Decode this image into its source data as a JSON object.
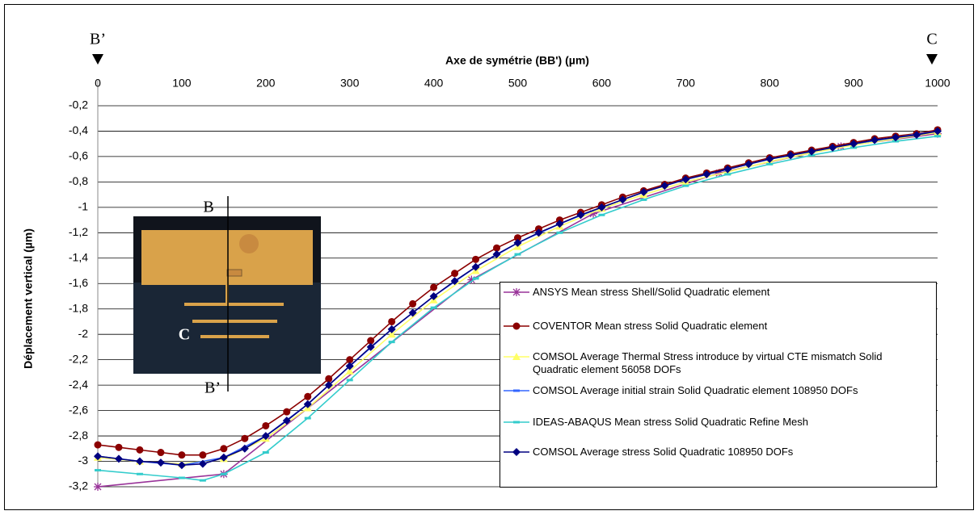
{
  "chart_data": {
    "type": "line",
    "xlabel": "Axe de symétrie (BB')  (µm)",
    "ylabel": "Déplacement vertical  (µm)",
    "xlim": [
      0,
      1000
    ],
    "xticks": [
      0,
      100,
      200,
      300,
      400,
      500,
      600,
      700,
      800,
      900,
      1000
    ],
    "ylim": [
      -3.2,
      0
    ],
    "yticks": [
      {
        "value": -0.2,
        "label": "-0,2"
      },
      {
        "value": -0.4,
        "label": "-0,4"
      },
      {
        "value": -0.6,
        "label": "-0,6"
      },
      {
        "value": -0.8,
        "label": "-0,8"
      },
      {
        "value": -1,
        "label": "-1"
      },
      {
        "value": -1.2,
        "label": "-1,2"
      },
      {
        "value": -1.4,
        "label": "-1,4"
      },
      {
        "value": -1.6,
        "label": "-1,6"
      },
      {
        "value": -1.8,
        "label": "-1,8"
      },
      {
        "value": -2,
        "label": "-2"
      },
      {
        "value": -2.2,
        "label": "-2,2"
      },
      {
        "value": -2.4,
        "label": "-2,4"
      },
      {
        "value": -2.6,
        "label": "-2,6"
      },
      {
        "value": -2.8,
        "label": "-2,8"
      },
      {
        "value": -3,
        "label": "-3"
      },
      {
        "value": -3.2,
        "label": "-3,2"
      }
    ],
    "grid": true,
    "annotations": [
      "B’",
      "C",
      "B",
      "C",
      "B’"
    ],
    "series": [
      {
        "name": "ANSYS Mean stress Shell/Solid Quadratic element",
        "color": "#993399",
        "marker": "star",
        "x": [
          0,
          150,
          445,
          590,
          740,
          885,
          1000
        ],
        "values": [
          -3.2,
          -3.1,
          -1.57,
          -1.05,
          -0.73,
          -0.52,
          -0.42
        ]
      },
      {
        "name": "COVENTOR Mean stress Solid Quadratic element",
        "color": "#8b0000",
        "marker": "circle",
        "x": [
          0,
          25,
          50,
          75,
          100,
          125,
          150,
          175,
          200,
          225,
          250,
          275,
          300,
          325,
          350,
          375,
          400,
          425,
          450,
          475,
          500,
          525,
          550,
          575,
          600,
          625,
          650,
          675,
          700,
          725,
          750,
          775,
          800,
          825,
          850,
          875,
          900,
          925,
          950,
          975,
          1000
        ],
        "values": [
          -2.87,
          -2.89,
          -2.91,
          -2.93,
          -2.95,
          -2.95,
          -2.9,
          -2.82,
          -2.72,
          -2.61,
          -2.49,
          -2.35,
          -2.2,
          -2.05,
          -1.9,
          -1.76,
          -1.63,
          -1.52,
          -1.41,
          -1.32,
          -1.24,
          -1.17,
          -1.1,
          -1.04,
          -0.98,
          -0.92,
          -0.87,
          -0.82,
          -0.77,
          -0.73,
          -0.69,
          -0.65,
          -0.61,
          -0.58,
          -0.55,
          -0.52,
          -0.49,
          -0.46,
          -0.44,
          -0.42,
          -0.39
        ]
      },
      {
        "name": "COMSOL Average Thermal Stress introduce by virtual CTE mismatch  Solid Quadratic element 56058 DOFs",
        "color": "#ffff66",
        "marker": "triangle",
        "x": [
          0,
          50,
          100,
          150,
          200,
          250,
          300,
          350,
          400,
          450,
          500,
          550,
          600,
          650,
          700,
          750,
          800,
          850,
          900,
          950,
          1000
        ],
        "values": [
          -2.97,
          -3.0,
          -3.02,
          -2.98,
          -2.82,
          -2.58,
          -2.29,
          -2.0,
          -1.73,
          -1.5,
          -1.31,
          -1.15,
          -1.01,
          -0.9,
          -0.8,
          -0.72,
          -0.64,
          -0.57,
          -0.51,
          -0.46,
          -0.41
        ]
      },
      {
        "name": "COMSOL Average initial strain Solid Quadratic element 108950 DOFs",
        "color": "#3366ff",
        "marker": "dash",
        "x": [
          0,
          50,
          100,
          150,
          200,
          250,
          300,
          350,
          400,
          450,
          500,
          550,
          600,
          650,
          700,
          750,
          800,
          850,
          900,
          950,
          1000
        ],
        "values": [
          -2.96,
          -3.0,
          -3.03,
          -2.97,
          -2.8,
          -2.55,
          -2.25,
          -1.96,
          -1.7,
          -1.47,
          -1.28,
          -1.13,
          -1.0,
          -0.88,
          -0.78,
          -0.7,
          -0.62,
          -0.56,
          -0.5,
          -0.45,
          -0.4
        ]
      },
      {
        "name": "IDEAS-ABAQUS Mean stress Solid Quadratic Refine Mesh",
        "color": "#33cccc",
        "marker": "dash",
        "x": [
          0,
          50,
          100,
          125,
          150,
          200,
          250,
          300,
          350,
          400,
          450,
          500,
          550,
          600,
          650,
          700,
          750,
          800,
          850,
          900,
          950,
          1000
        ],
        "values": [
          -3.07,
          -3.1,
          -3.13,
          -3.15,
          -3.1,
          -2.93,
          -2.66,
          -2.36,
          -2.06,
          -1.79,
          -1.56,
          -1.37,
          -1.2,
          -1.06,
          -0.94,
          -0.83,
          -0.74,
          -0.66,
          -0.59,
          -0.53,
          -0.48,
          -0.44
        ]
      },
      {
        "name": "COMSOL Average stress Solid Quadratic 108950 DOFs",
        "color": "#000080",
        "marker": "diamond",
        "x": [
          0,
          25,
          50,
          75,
          100,
          125,
          150,
          175,
          200,
          225,
          250,
          275,
          300,
          325,
          350,
          375,
          400,
          425,
          450,
          475,
          500,
          525,
          550,
          575,
          600,
          625,
          650,
          675,
          700,
          725,
          750,
          775,
          800,
          825,
          850,
          875,
          900,
          925,
          950,
          975,
          1000
        ],
        "values": [
          -2.96,
          -2.98,
          -3.0,
          -3.01,
          -3.03,
          -3.02,
          -2.97,
          -2.9,
          -2.8,
          -2.68,
          -2.55,
          -2.4,
          -2.25,
          -2.1,
          -1.96,
          -1.83,
          -1.7,
          -1.58,
          -1.47,
          -1.37,
          -1.28,
          -1.2,
          -1.13,
          -1.06,
          -1.0,
          -0.94,
          -0.88,
          -0.83,
          -0.78,
          -0.74,
          -0.7,
          -0.66,
          -0.62,
          -0.59,
          -0.56,
          -0.53,
          -0.5,
          -0.47,
          -0.45,
          -0.43,
          -0.4
        ]
      }
    ]
  }
}
